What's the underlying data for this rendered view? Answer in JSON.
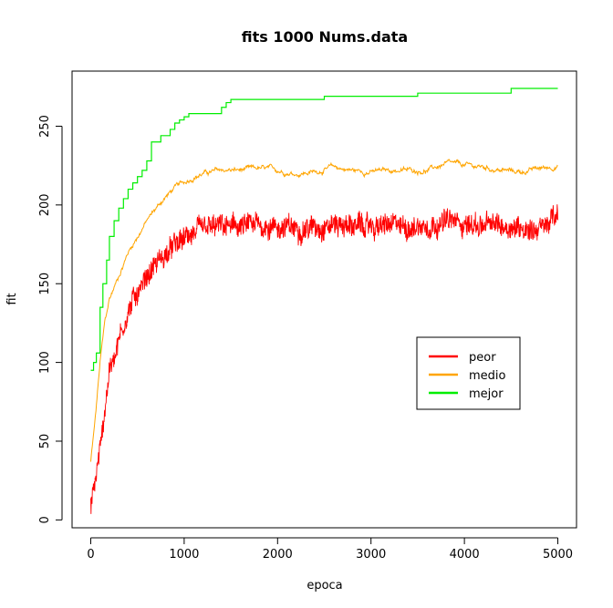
{
  "chart_data": {
    "type": "line",
    "title": "fits 1000 Nums.data",
    "xlabel": "epoca",
    "ylabel": "fit",
    "xlim": [
      -200,
      5200
    ],
    "ylim": [
      -5,
      285
    ],
    "x_ticks": [
      0,
      1000,
      2000,
      3000,
      4000,
      5000
    ],
    "y_ticks": [
      0,
      50,
      100,
      150,
      200,
      250
    ],
    "legend_position": "center-right",
    "grid": false,
    "series": [
      {
        "name": "peor",
        "color": "#ff0000",
        "style": "noisy",
        "x": [
          0,
          50,
          100,
          150,
          200,
          300,
          400,
          500,
          600,
          700,
          800,
          900,
          1000,
          1100,
          1200,
          1400,
          1600,
          1800,
          2000,
          2200,
          2400,
          2600,
          2800,
          3000,
          3200,
          3400,
          3600,
          3800,
          4000,
          4200,
          4400,
          4600,
          4800,
          5000
        ],
        "values": [
          8,
          25,
          45,
          70,
          95,
          115,
          132,
          145,
          155,
          163,
          168,
          174,
          178,
          182,
          184,
          186,
          186,
          187,
          186,
          185,
          186,
          188,
          187,
          186,
          187,
          186,
          187,
          190,
          188,
          187,
          187,
          186,
          185,
          193
        ]
      },
      {
        "name": "medio",
        "color": "#ffa500",
        "style": "smooth",
        "x": [
          0,
          50,
          100,
          150,
          200,
          300,
          400,
          500,
          600,
          700,
          800,
          900,
          1000,
          1100,
          1200,
          1400,
          1600,
          1800,
          2000,
          2200,
          2400,
          2600,
          2800,
          3000,
          3200,
          3400,
          3600,
          3800,
          4000,
          4200,
          4400,
          4600,
          4800,
          5000
        ],
        "values": [
          37,
          65,
          100,
          125,
          140,
          155,
          170,
          180,
          190,
          198,
          205,
          211,
          214,
          218,
          220,
          222,
          222,
          223,
          222,
          220,
          221,
          224,
          222,
          221,
          222,
          222,
          222,
          226,
          225,
          224,
          222,
          221,
          223,
          225
        ]
      },
      {
        "name": "mejor",
        "color": "#00ee00",
        "style": "step",
        "x": [
          0,
          30,
          60,
          100,
          130,
          170,
          200,
          250,
          300,
          350,
          400,
          450,
          500,
          550,
          600,
          650,
          750,
          850,
          900,
          950,
          1000,
          1050,
          1400,
          1450,
          1500,
          2500,
          3500,
          4500,
          5000
        ],
        "values": [
          95,
          100,
          106,
          135,
          150,
          165,
          180,
          190,
          198,
          204,
          210,
          214,
          218,
          222,
          228,
          240,
          244,
          248,
          252,
          254,
          256,
          258,
          262,
          265,
          267,
          269,
          271,
          274,
          274
        ]
      }
    ]
  }
}
